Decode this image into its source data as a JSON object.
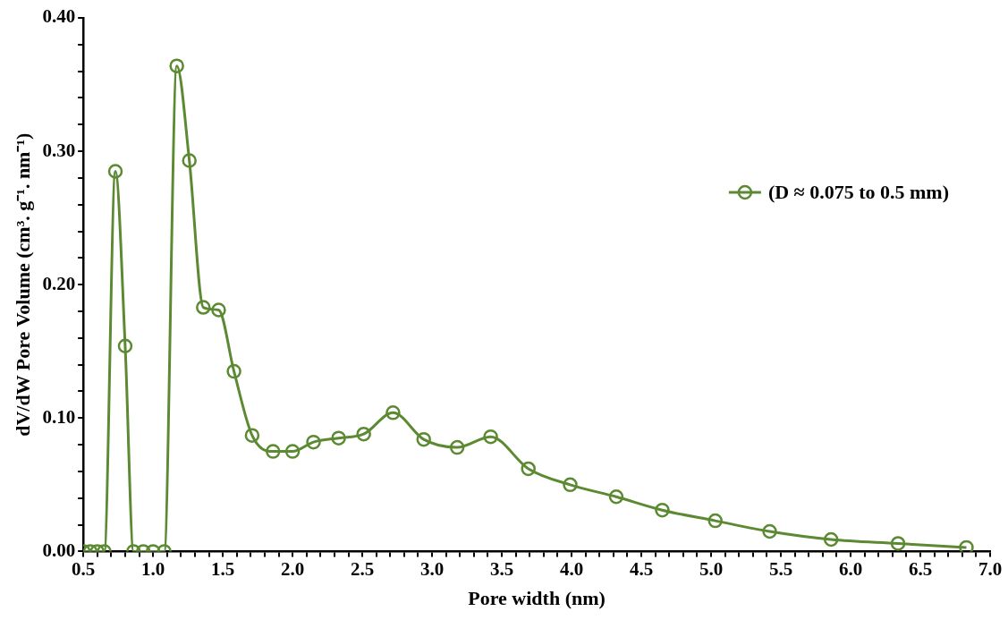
{
  "chart_data": {
    "type": "line",
    "xlabel": "Pore width (nm)",
    "ylabel": "dV/dW Pore Volume (cm³. g⁻¹. nm⁻¹)",
    "x": [
      0.5,
      0.55,
      0.6,
      0.65,
      0.73,
      0.8,
      0.86,
      0.93,
      1.0,
      1.08,
      1.17,
      1.26,
      1.36,
      1.47,
      1.58,
      1.71,
      1.86,
      2.0,
      2.15,
      2.33,
      2.51,
      2.72,
      2.94,
      3.18,
      3.42,
      3.69,
      3.99,
      4.32,
      4.65,
      5.03,
      5.42,
      5.86,
      6.34,
      6.83
    ],
    "series": [
      {
        "name": "(D ≈ 0.075 to 0.5 mm)",
        "color": "#5b8a32",
        "values": [
          0,
          0,
          0,
          0,
          0.285,
          0.154,
          0,
          0,
          0,
          0,
          0.364,
          0.293,
          0.183,
          0.181,
          0.135,
          0.087,
          0.075,
          0.075,
          0.082,
          0.085,
          0.088,
          0.104,
          0.084,
          0.078,
          0.086,
          0.062,
          0.05,
          0.041,
          0.031,
          0.023,
          0.015,
          0.009,
          0.006,
          0.003
        ]
      }
    ],
    "xlim": [
      0.5,
      7.0
    ],
    "xticks": [
      {
        "value": 0.5,
        "label": "0.5"
      },
      {
        "value": 0.6,
        "label": null
      },
      {
        "value": 0.7,
        "label": null
      },
      {
        "value": 0.8,
        "label": null
      },
      {
        "value": 0.9,
        "label": null
      },
      {
        "value": 1.0,
        "label": "1.0"
      },
      {
        "value": 1.1,
        "label": null
      },
      {
        "value": 1.2,
        "label": null
      },
      {
        "value": 1.3,
        "label": null
      },
      {
        "value": 1.4,
        "label": null
      },
      {
        "value": 1.5,
        "label": "1.5"
      },
      {
        "value": 1.6,
        "label": null
      },
      {
        "value": 1.7,
        "label": null
      },
      {
        "value": 1.8,
        "label": null
      },
      {
        "value": 1.9,
        "label": null
      },
      {
        "value": 2.0,
        "label": "2.0"
      },
      {
        "value": 2.1,
        "label": null
      },
      {
        "value": 2.2,
        "label": null
      },
      {
        "value": 2.3,
        "label": null
      },
      {
        "value": 2.4,
        "label": null
      },
      {
        "value": 2.5,
        "label": "2.5"
      },
      {
        "value": 2.6,
        "label": null
      },
      {
        "value": 2.7,
        "label": null
      },
      {
        "value": 2.8,
        "label": null
      },
      {
        "value": 2.9,
        "label": null
      },
      {
        "value": 3.0,
        "label": "3.0"
      },
      {
        "value": 3.1,
        "label": null
      },
      {
        "value": 3.2,
        "label": null
      },
      {
        "value": 3.3,
        "label": null
      },
      {
        "value": 3.4,
        "label": null
      },
      {
        "value": 3.5,
        "label": "3.5"
      },
      {
        "value": 3.6,
        "label": null
      },
      {
        "value": 3.7,
        "label": null
      },
      {
        "value": 3.8,
        "label": null
      },
      {
        "value": 3.9,
        "label": null
      },
      {
        "value": 4.0,
        "label": "4.0"
      },
      {
        "value": 4.1,
        "label": null
      },
      {
        "value": 4.2,
        "label": null
      },
      {
        "value": 4.3,
        "label": null
      },
      {
        "value": 4.4,
        "label": null
      },
      {
        "value": 4.5,
        "label": "4.5"
      },
      {
        "value": 4.6,
        "label": null
      },
      {
        "value": 4.7,
        "label": null
      },
      {
        "value": 4.8,
        "label": null
      },
      {
        "value": 4.9,
        "label": null
      },
      {
        "value": 5.0,
        "label": "5.0"
      },
      {
        "value": 5.1,
        "label": null
      },
      {
        "value": 5.2,
        "label": null
      },
      {
        "value": 5.3,
        "label": null
      },
      {
        "value": 5.4,
        "label": null
      },
      {
        "value": 5.5,
        "label": "5.5"
      },
      {
        "value": 5.6,
        "label": null
      },
      {
        "value": 5.7,
        "label": null
      },
      {
        "value": 5.8,
        "label": null
      },
      {
        "value": 5.9,
        "label": null
      },
      {
        "value": 6.0,
        "label": "6.0"
      },
      {
        "value": 6.1,
        "label": null
      },
      {
        "value": 6.2,
        "label": null
      },
      {
        "value": 6.3,
        "label": null
      },
      {
        "value": 6.4,
        "label": null
      },
      {
        "value": 6.5,
        "label": "6.5"
      },
      {
        "value": 6.6,
        "label": null
      },
      {
        "value": 6.7,
        "label": null
      },
      {
        "value": 6.8,
        "label": null
      },
      {
        "value": 6.9,
        "label": null
      },
      {
        "value": 7.0,
        "label": "7.0"
      }
    ],
    "ylim": [
      0,
      0.4
    ],
    "yticks": [
      {
        "value": 0,
        "label": "0.00"
      },
      {
        "value": 0.02,
        "label": null
      },
      {
        "value": 0.04,
        "label": null
      },
      {
        "value": 0.06,
        "label": null
      },
      {
        "value": 0.08,
        "label": null
      },
      {
        "value": 0.1,
        "label": "0.10"
      },
      {
        "value": 0.12,
        "label": null
      },
      {
        "value": 0.14,
        "label": null
      },
      {
        "value": 0.16,
        "label": null
      },
      {
        "value": 0.18,
        "label": null
      },
      {
        "value": 0.2,
        "label": "0.20"
      },
      {
        "value": 0.22,
        "label": null
      },
      {
        "value": 0.24,
        "label": null
      },
      {
        "value": 0.26,
        "label": null
      },
      {
        "value": 0.28,
        "label": null
      },
      {
        "value": 0.3,
        "label": "0.30"
      },
      {
        "value": 0.32,
        "label": null
      },
      {
        "value": 0.34,
        "label": null
      },
      {
        "value": 0.36,
        "label": null
      },
      {
        "value": 0.38,
        "label": null
      },
      {
        "value": 0.4,
        "label": "0.40"
      }
    ],
    "grid": false,
    "legend": "top right",
    "marker": "circle",
    "line_style": "solid"
  }
}
